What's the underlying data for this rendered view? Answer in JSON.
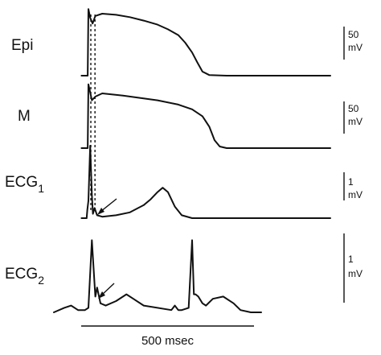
{
  "chart_data": {
    "type": "line",
    "panels": [
      {
        "label": "Epi",
        "subscript": "",
        "scale_value": "50",
        "scale_unit": "mV"
      },
      {
        "label": "M",
        "subscript": "",
        "scale_value": "50",
        "scale_unit": "mV"
      },
      {
        "label": "ECG",
        "subscript": "1",
        "scale_value": "1",
        "scale_unit": "mV"
      },
      {
        "label": "ECG",
        "subscript": "2",
        "scale_value": "1",
        "scale_unit": "mV"
      }
    ],
    "time_scale": {
      "label": "500 msec",
      "duration_ms": 500
    },
    "series": [
      {
        "x": [
          -20,
          -2,
          0,
          5,
          12,
          20,
          40,
          80,
          120,
          160,
          200,
          230,
          260,
          280,
          300,
          315,
          330,
          350,
          400,
          500,
          700
        ],
        "y": [
          -85,
          -85,
          30,
          15,
          5,
          18,
          22,
          20,
          16,
          10,
          3,
          -5,
          -15,
          -28,
          -45,
          -62,
          -78,
          -84,
          -85,
          -85,
          -85
        ]
      },
      {
        "x": [
          -20,
          -2,
          0,
          5,
          10,
          20,
          40,
          100,
          200,
          260,
          300,
          330,
          350,
          365,
          380,
          400,
          500,
          700
        ],
        "y": [
          -85,
          -85,
          35,
          20,
          5,
          12,
          18,
          14,
          5,
          -3,
          -12,
          -25,
          -45,
          -70,
          -82,
          -85,
          -85,
          -85
        ]
      },
      {
        "x": [
          -20,
          -5,
          -3,
          0,
          5,
          10,
          13,
          18,
          25,
          40,
          80,
          120,
          160,
          180,
          200,
          215,
          230,
          250,
          270,
          300,
          400,
          700
        ],
        "y": [
          0,
          0,
          0.3,
          0.6,
          2.5,
          0.8,
          0.15,
          0.35,
          0.1,
          0.05,
          0.1,
          0.2,
          0.45,
          0.65,
          0.9,
          1.05,
          0.9,
          0.4,
          0.1,
          0,
          0,
          0
        ]
      },
      {
        "x": [
          -100,
          -70,
          -50,
          -30,
          -10,
          0,
          10,
          20,
          25,
          35,
          50,
          80,
          110,
          130,
          160,
          240,
          250,
          260,
          270,
          290,
          300,
          305,
          310,
          318,
          330,
          340,
          360,
          390,
          420,
          440,
          470,
          500
        ],
        "y": [
          0,
          0.1,
          0.15,
          0.05,
          0.05,
          0.1,
          1.6,
          0.35,
          0.55,
          0.2,
          0.15,
          0.25,
          0.4,
          0.3,
          0.15,
          0.05,
          0.15,
          0.05,
          0.05,
          0.1,
          1.6,
          0.4,
          0.4,
          0.35,
          0.2,
          0.15,
          0.3,
          0.35,
          0.2,
          0.05,
          0,
          0
        ]
      }
    ]
  }
}
